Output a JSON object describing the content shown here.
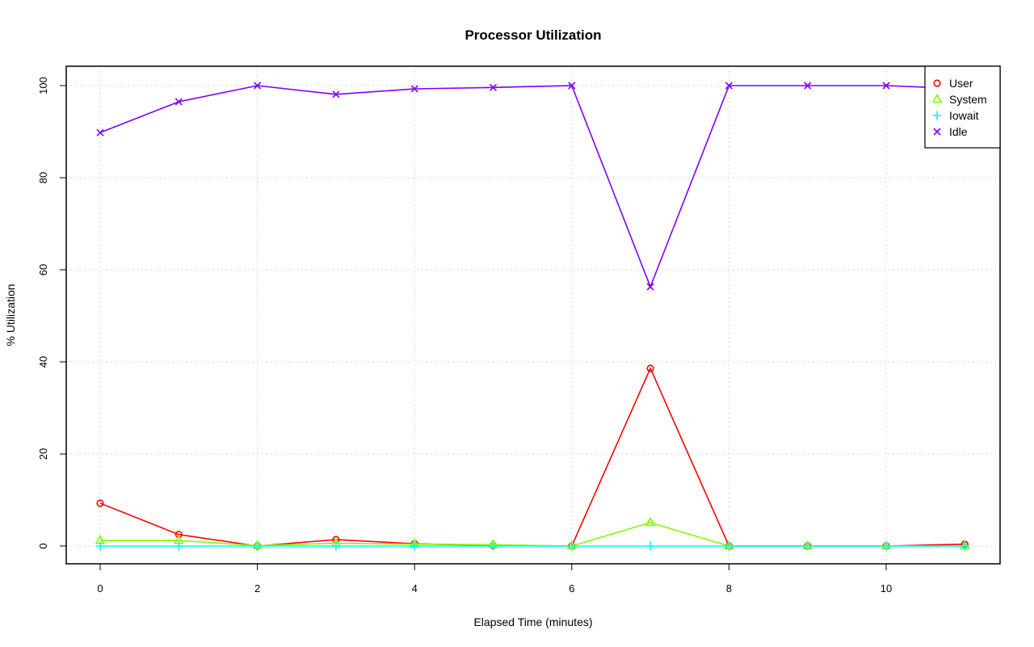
{
  "chart_data": {
    "type": "line",
    "title": "Processor Utilization",
    "xlabel": "Elapsed Time (minutes)",
    "ylabel": "% Utilization",
    "xlim": [
      -0.43,
      11.43
    ],
    "ylim": [
      -4,
      104
    ],
    "xticks": [
      0,
      2,
      4,
      6,
      8,
      10
    ],
    "yticks": [
      0,
      20,
      40,
      60,
      80,
      100
    ],
    "grid": true,
    "legend_position": "top-right",
    "x": [
      0,
      1,
      2,
      3,
      4,
      5,
      6,
      7,
      8,
      9,
      10,
      11
    ],
    "series": [
      {
        "name": "User",
        "color": "#FF0000",
        "marker": "circle",
        "values": [
          9.3,
          2.5,
          0.0,
          1.4,
          0.5,
          0.1,
          0.0,
          38.6,
          0.0,
          0.0,
          0.0,
          0.4
        ]
      },
      {
        "name": "System",
        "color": "#80FF00",
        "marker": "triangle",
        "values": [
          1.2,
          1.2,
          0.1,
          0.6,
          0.4,
          0.3,
          0.0,
          5.1,
          0.0,
          0.0,
          0.0,
          0.0
        ]
      },
      {
        "name": "Iowait",
        "color": "#00FFFF",
        "marker": "plus",
        "values": [
          0,
          0,
          0,
          0,
          0,
          0,
          0,
          0,
          0,
          0,
          0,
          0
        ]
      },
      {
        "name": "Idle",
        "color": "#8000FF",
        "marker": "cross",
        "values": [
          89.8,
          96.5,
          100.0,
          98.1,
          99.3,
          99.6,
          100.0,
          56.3,
          100.0,
          100.0,
          100.0,
          99.3
        ]
      }
    ]
  }
}
